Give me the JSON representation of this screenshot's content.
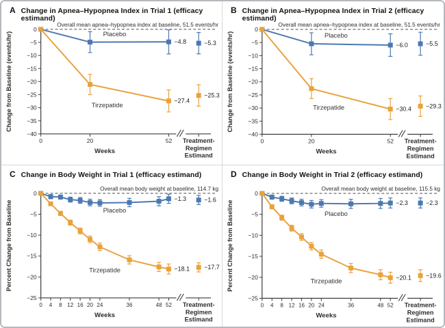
{
  "figure": {
    "description": "Four-panel efficacy figure: change in apnea-hypopnea index and body weight, tirzepatide vs placebo, trials 1 and 2"
  },
  "colors": {
    "placebo": "#4b78b1",
    "tirzepatide": "#e9a23c",
    "axis": "#3a3a3a",
    "baseline_dash": "#4a4a4a"
  },
  "chart_data": [
    {
      "type": "line",
      "panel_label": "A",
      "title": "Change in Apnea–Hypopnea Index in Trial 1 (efficacy estimand)",
      "baseline_note": "Overall mean apnea–hypopnea index at baseline, 51.5 events/hr",
      "ylabel": "Change from Baseline (events/hr)",
      "xlabel": "Weeks",
      "ylim": [
        0,
        -40
      ],
      "ytick_step": -5,
      "xticks": [
        0,
        20,
        52
      ],
      "xmax": 52,
      "tick_class": "t-tick",
      "estimand_label_lines": [
        "Treatment-",
        "Regimen",
        "Estimand"
      ],
      "series": [
        {
          "name": "Placebo",
          "color": "#4b78b1",
          "x": [
            0,
            20,
            52
          ],
          "y": [
            0,
            -4.9,
            -4.8
          ],
          "err": [
            0,
            4.0,
            4.6
          ],
          "end_label": "−4.8",
          "estimand": {
            "y": -5.3,
            "err": 4.1,
            "label": "−5.3"
          },
          "name_pos": {
            "week": 30,
            "value": -2.6
          }
        },
        {
          "name": "Tirzepatide",
          "color": "#e9a23c",
          "x": [
            0,
            20,
            52
          ],
          "y": [
            0,
            -21.1,
            -27.4
          ],
          "err": [
            0,
            3.9,
            4.2
          ],
          "end_label": "−27.4",
          "estimand": {
            "y": -25.3,
            "err": 4.1,
            "label": "−25.3"
          },
          "name_pos": {
            "week": 27,
            "value": -29.8
          }
        }
      ]
    },
    {
      "type": "line",
      "panel_label": "B",
      "title": "Change in Apnea–Hypopnea Index in Trial 2 (efficacy estimand)",
      "baseline_note": "Overall mean apnea–hypopnea index at baseline, 51.5 events/hr",
      "ylabel": "Change from Baseline (events/hr)",
      "xlabel": "Weeks",
      "ylim": [
        0,
        -40
      ],
      "ytick_step": -5,
      "xticks": [
        0,
        20,
        52
      ],
      "xmax": 52,
      "tick_class": "t-tick",
      "estimand_label_lines": [
        "Treatment-",
        "Regimen",
        "Estimand"
      ],
      "series": [
        {
          "name": "Placebo",
          "color": "#4b78b1",
          "x": [
            0,
            20,
            52
          ],
          "y": [
            0,
            -5.5,
            -6.0
          ],
          "err": [
            0,
            4.2,
            4.3
          ],
          "end_label": "−6.0",
          "estimand": {
            "y": -5.5,
            "err": 4.4,
            "label": "−5.5"
          },
          "name_pos": {
            "week": 30,
            "value": -3.2
          }
        },
        {
          "name": "Tirzepatide",
          "color": "#e9a23c",
          "x": [
            0,
            20,
            52
          ],
          "y": [
            0,
            -22.6,
            -30.4
          ],
          "err": [
            0,
            3.8,
            4.0
          ],
          "end_label": "−30.4",
          "estimand": {
            "y": -29.3,
            "err": 3.9,
            "label": "−29.3"
          },
          "name_pos": {
            "week": 27,
            "value": -30.6
          }
        }
      ]
    },
    {
      "type": "line",
      "panel_label": "C",
      "title": "Change in Body Weight in Trial 1 (efficacy estimand)",
      "baseline_note": "Overall mean body weight at baseline, 114.7 kg",
      "ylabel": "Percent Change from Baseline",
      "xlabel": "Weeks",
      "ylim": [
        0,
        -25
      ],
      "ytick_step": -5,
      "xticks": [
        0,
        4,
        8,
        12,
        16,
        20,
        24,
        36,
        48,
        52
      ],
      "xmax": 52,
      "tick_class": "t-tick-sm",
      "estimand_label_lines": [
        "Treatment-",
        "Regimen",
        "Estimand"
      ],
      "series": [
        {
          "name": "Placebo",
          "color": "#4b78b1",
          "x": [
            0,
            4,
            8,
            12,
            16,
            20,
            24,
            36,
            48,
            52
          ],
          "y": [
            0,
            -0.8,
            -0.9,
            -1.5,
            -1.7,
            -2.2,
            -2.3,
            -2.2,
            -1.9,
            -1.3
          ],
          "err": [
            0,
            0.5,
            0.5,
            0.6,
            0.7,
            0.8,
            0.8,
            1.0,
            1.1,
            1.1
          ],
          "end_label": "−1.3",
          "estimand": {
            "y": -1.6,
            "err": 1.1,
            "label": "−1.6"
          },
          "name_pos": {
            "week": 30,
            "value": -4.6
          }
        },
        {
          "name": "Tirzepatide",
          "color": "#e9a23c",
          "x": [
            0,
            4,
            8,
            12,
            16,
            20,
            24,
            36,
            48,
            52
          ],
          "y": [
            0,
            -2.5,
            -4.8,
            -7.0,
            -9.0,
            -11.0,
            -12.8,
            -15.9,
            -17.6,
            -18.1
          ],
          "err": [
            0,
            0.4,
            0.5,
            0.6,
            0.7,
            0.8,
            0.9,
            1.0,
            1.1,
            1.2
          ],
          "end_label": "−18.1",
          "estimand": {
            "y": -17.7,
            "err": 1.1,
            "label": "−17.7"
          },
          "name_pos": {
            "week": 26,
            "value": -18.9
          }
        }
      ]
    },
    {
      "type": "line",
      "panel_label": "D",
      "title": "Change in Body Weight in Trial 2 (efficacy estimand)",
      "baseline_note": "Overall mean body weight at baseline, 115.5 kg",
      "ylabel": "Percent Change from Baseline",
      "xlabel": "Weeks",
      "ylim": [
        0,
        -25
      ],
      "ytick_step": -5,
      "xticks": [
        0,
        4,
        8,
        12,
        16,
        20,
        24,
        36,
        48,
        52
      ],
      "xmax": 52,
      "tick_class": "t-tick-sm",
      "estimand_label_lines": [
        "Treatment-",
        "Regimen",
        "Estimand"
      ],
      "series": [
        {
          "name": "Placebo",
          "color": "#4b78b1",
          "x": [
            0,
            4,
            8,
            12,
            16,
            20,
            24,
            36,
            48,
            52
          ],
          "y": [
            0,
            -0.9,
            -1.3,
            -1.8,
            -2.2,
            -2.6,
            -2.4,
            -2.5,
            -2.4,
            -2.3
          ],
          "err": [
            0,
            0.5,
            0.6,
            0.7,
            0.8,
            0.9,
            0.9,
            1.1,
            1.2,
            1.2
          ],
          "end_label": "−2.3",
          "estimand": {
            "y": -2.3,
            "err": 1.2,
            "label": "−2.3"
          },
          "name_pos": {
            "week": 30,
            "value": -5.4
          }
        },
        {
          "name": "Tirzepatide",
          "color": "#e9a23c",
          "x": [
            0,
            4,
            8,
            12,
            16,
            20,
            24,
            36,
            48,
            52
          ],
          "y": [
            0,
            -3.2,
            -5.8,
            -8.3,
            -10.4,
            -12.6,
            -14.5,
            -17.8,
            -19.4,
            -20.1
          ],
          "err": [
            0,
            0.5,
            0.6,
            0.7,
            0.8,
            0.9,
            1.0,
            1.1,
            1.2,
            1.3
          ],
          "end_label": "−20.1",
          "estimand": {
            "y": -19.6,
            "err": 1.4,
            "label": "−19.6"
          },
          "name_pos": {
            "week": 26,
            "value": -21.4
          }
        }
      ]
    }
  ]
}
